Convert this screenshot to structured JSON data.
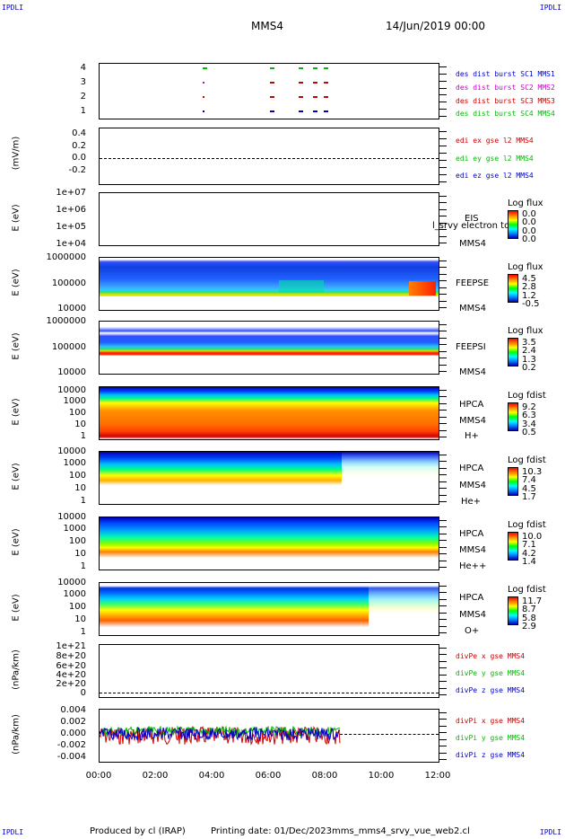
{
  "header": {
    "corner_label": "IPDLI",
    "spacecraft": "MMS4",
    "date": "14/Jun/2019 00:00"
  },
  "panel1": {
    "yticks": [
      "4",
      "3",
      "2",
      "1"
    ],
    "legend": [
      {
        "text": "des dist burst SC1 MMS1",
        "color": "#0000cc"
      },
      {
        "text": "des dist burst SC2 MMS2",
        "color": "#cc00cc"
      },
      {
        "text": "des dist burst SC3 MMS3",
        "color": "#cc0000"
      },
      {
        "text": "des dist burst SC4 MMS4",
        "color": "#00bb00"
      }
    ]
  },
  "panel2": {
    "ylabel": "(mV/m)",
    "yticks": [
      "0.4",
      "0.2",
      "0.0",
      "-0.2"
    ],
    "legend": [
      {
        "text": "edi ex gse l2 MMS4",
        "color": "#cc0000"
      },
      {
        "text": "edi ey gse l2 MMS4",
        "color": "#00bb00"
      },
      {
        "text": "edi ez gse l2 MMS4",
        "color": "#0000cc"
      }
    ]
  },
  "panel3": {
    "ylabel": "E (eV)",
    "yticks": [
      "1e+07",
      "1e+06",
      "1e+05",
      "1e+04"
    ],
    "inst": "EIS",
    "sc": "MMS4",
    "overlay": "l_srvy electron to",
    "cbar_title": "Log flux",
    "cbar_vals": [
      "0.0",
      "0.0",
      "0.0",
      "0.0"
    ]
  },
  "panel4": {
    "ylabel": "E (eV)",
    "yticks": [
      "1000000",
      "100000",
      "10000"
    ],
    "inst": "FEEPSE",
    "sc": "MMS4",
    "cbar_title": "Log flux",
    "cbar_vals": [
      "4.5",
      "2.8",
      "1.2",
      "-0.5"
    ]
  },
  "panel5": {
    "ylabel": "E (eV)",
    "yticks": [
      "1000000",
      "100000",
      "10000"
    ],
    "inst": "FEEPSI",
    "sc": "MMS4",
    "cbar_title": "Log flux",
    "cbar_vals": [
      "3.5",
      "2.4",
      "1.3",
      "0.2"
    ]
  },
  "panel6": {
    "ylabel": "E (eV)",
    "yticks": [
      "10000",
      "1000",
      "100",
      "10",
      "1"
    ],
    "inst": "HPCA",
    "sc": "MMS4",
    "species": "H+",
    "cbar_title": "Log fdist",
    "cbar_vals": [
      "9.2",
      "6.3",
      "3.4",
      "0.5"
    ]
  },
  "panel7": {
    "ylabel": "E (eV)",
    "yticks": [
      "10000",
      "1000",
      "100",
      "10",
      "1"
    ],
    "inst": "HPCA",
    "sc": "MMS4",
    "species": "He+",
    "cbar_title": "Log fdist",
    "cbar_vals": [
      "10.3",
      "7.4",
      "4.5",
      "1.7"
    ]
  },
  "panel8": {
    "ylabel": "E (eV)",
    "yticks": [
      "10000",
      "1000",
      "100",
      "10",
      "1"
    ],
    "inst": "HPCA",
    "sc": "MMS4",
    "species": "He++",
    "cbar_title": "Log fdist",
    "cbar_vals": [
      "10.0",
      "7.1",
      "4.2",
      "1.4"
    ]
  },
  "panel9": {
    "ylabel": "E (eV)",
    "yticks": [
      "10000",
      "1000",
      "100",
      "10",
      "1"
    ],
    "inst": "HPCA",
    "sc": "MMS4",
    "species": "O+",
    "cbar_title": "Log fdist",
    "cbar_vals": [
      "11.7",
      "8.7",
      "5.8",
      "2.9"
    ]
  },
  "panel10": {
    "ylabel": "(nPa/km)",
    "yticks": [
      "1e+21",
      "8e+20",
      "6e+20",
      "4e+20",
      "2e+20",
      "0"
    ],
    "legend": [
      {
        "text": "divPe x gse MMS4",
        "color": "#cc0000"
      },
      {
        "text": "divPe y gse MMS4",
        "color": "#00bb00"
      },
      {
        "text": "divPe z gse MMS4",
        "color": "#0000cc"
      }
    ]
  },
  "panel11": {
    "ylabel": "(nPa/km)",
    "yticks": [
      "0.004",
      "0.002",
      "0.000",
      "-0.002",
      "-0.004"
    ],
    "legend": [
      {
        "text": "divPi x gse MMS4",
        "color": "#cc0000"
      },
      {
        "text": "divPi y gse MMS4",
        "color": "#00bb00"
      },
      {
        "text": "divPi z gse MMS4",
        "color": "#0000cc"
      }
    ]
  },
  "xaxis": {
    "ticks": [
      "00:00",
      "02:00",
      "04:00",
      "06:00",
      "08:00",
      "10:00",
      "12:00"
    ]
  },
  "footer": {
    "produced": "Produced by cl (IRAP)",
    "printing": "Printing date: 01/Dec/2023",
    "file": "mms_mms4_srvy_vue_web2.cl"
  },
  "chart_data": {
    "type": "heatmap",
    "title": "MMS4 14/Jun/2019 00:00",
    "x": [
      "00:00",
      "02:00",
      "04:00",
      "06:00",
      "08:00",
      "10:00",
      "12:00"
    ],
    "xlabel": "",
    "series": [
      {
        "name": "FEEPSE",
        "unit": "Log flux",
        "range": [
          -0.5,
          4.5
        ]
      },
      {
        "name": "FEEPSI",
        "unit": "Log flux",
        "range": [
          0.2,
          3.5
        ]
      },
      {
        "name": "HPCA H+",
        "unit": "Log fdist",
        "range": [
          0.5,
          9.2
        ]
      },
      {
        "name": "HPCA He+",
        "unit": "Log fdist",
        "range": [
          1.7,
          10.3
        ]
      },
      {
        "name": "HPCA He++",
        "unit": "Log fdist",
        "range": [
          1.4,
          10.0
        ]
      },
      {
        "name": "HPCA O+",
        "unit": "Log fdist",
        "range": [
          2.9,
          11.7
        ]
      },
      {
        "name": "divPi x gse MMS4",
        "ylim": [
          -0.004,
          0.004
        ]
      },
      {
        "name": "divPi y gse MMS4",
        "ylim": [
          -0.004,
          0.004
        ]
      },
      {
        "name": "divPi z gse MMS4",
        "ylim": [
          -0.004,
          0.004
        ]
      }
    ]
  }
}
